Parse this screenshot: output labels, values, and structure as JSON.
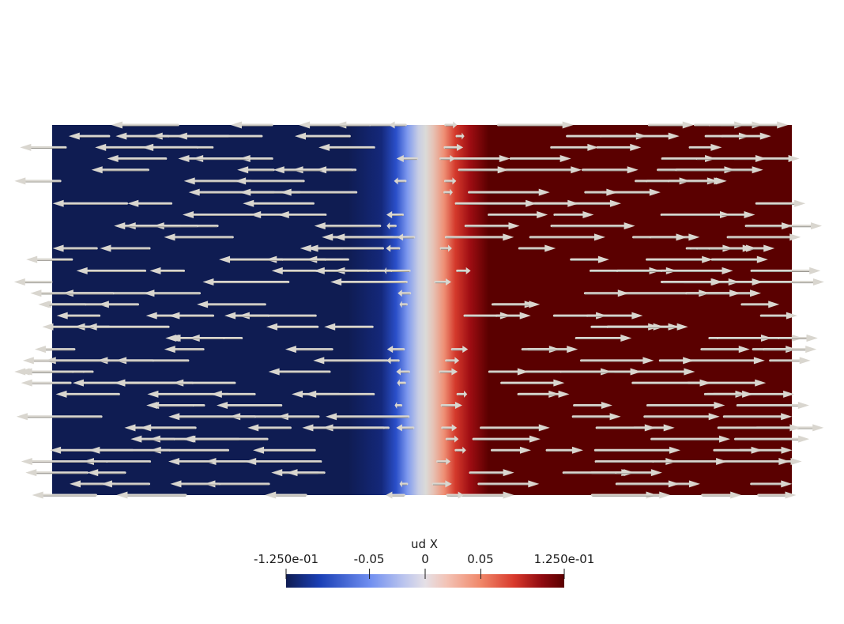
{
  "scalar_bar": {
    "title": "ud X",
    "ticks": [
      "-1.250e-01",
      "-0.05",
      "0",
      "0.05",
      "1.250e-01"
    ],
    "range": [
      -0.125,
      0.125
    ],
    "tick_values": [
      -0.125,
      -0.05,
      0,
      0.05,
      0.125
    ]
  },
  "colormap": {
    "name": "Cool to Warm (Extended)",
    "stops": [
      "#0f1c52",
      "#1a3fb5",
      "#6f8ef0",
      "#c8cfe6",
      "#e7d4cc",
      "#f4a38a",
      "#d8392c",
      "#8f0a10",
      "#5a0000"
    ]
  },
  "glyphs": {
    "type": "arrow",
    "color": "#d9d6cf"
  }
}
